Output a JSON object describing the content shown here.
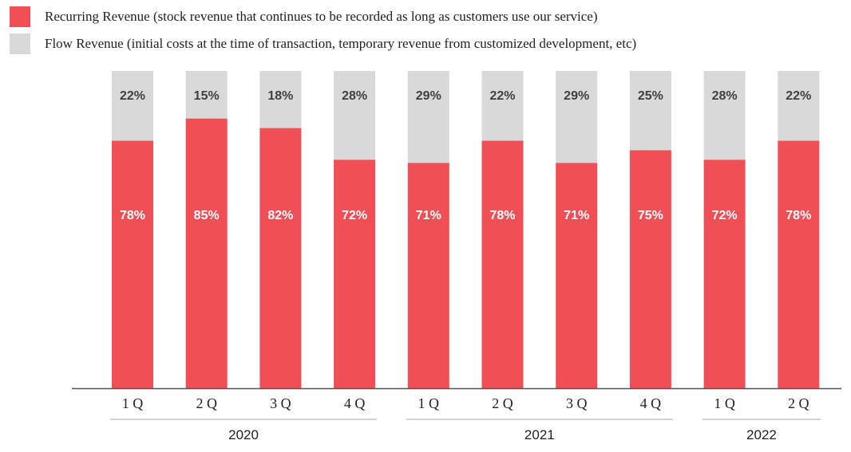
{
  "colors": {
    "recurring": "#f04f55",
    "flow": "#d9d9d9",
    "label_on_recurring": "#ffffff",
    "label_on_flow": "#404040",
    "axis": "#555555",
    "group_line": "#bbbbbb"
  },
  "chart_data": {
    "type": "bar",
    "stacked": true,
    "normalized_percent": true,
    "categories": [
      "1 Q",
      "2 Q",
      "3 Q",
      "4 Q",
      "1 Q",
      "2 Q",
      "3 Q",
      "4 Q",
      "1 Q",
      "2 Q"
    ],
    "groups": [
      {
        "label": "2020",
        "count": 4
      },
      {
        "label": "2021",
        "count": 4
      },
      {
        "label": "2022",
        "count": 2
      }
    ],
    "series": [
      {
        "name": "Recurring Revenue (stock revenue that continues to be recorded as long as customers use our service)",
        "values": [
          78,
          85,
          82,
          72,
          71,
          78,
          71,
          75,
          72,
          78
        ],
        "labels": [
          "78%",
          "85%",
          "82%",
          "72%",
          "71%",
          "78%",
          "71%",
          "75%",
          "72%",
          "78%"
        ]
      },
      {
        "name": "Flow Revenue (initial costs at the time of transaction, temporary revenue from customized development, etc)",
        "values": [
          22,
          15,
          18,
          28,
          29,
          22,
          29,
          25,
          28,
          22
        ],
        "labels": [
          "22%",
          "15%",
          "18%",
          "28%",
          "29%",
          "22%",
          "29%",
          "25%",
          "28%",
          "22%"
        ]
      }
    ],
    "ylim": [
      0,
      100
    ],
    "legend_position": "top-left",
    "grid": false
  }
}
